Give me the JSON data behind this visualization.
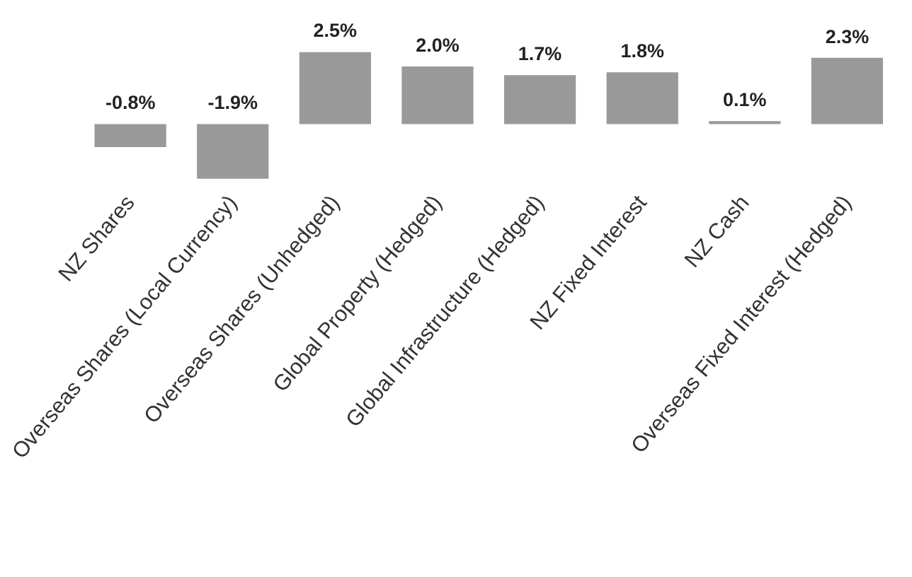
{
  "chart_data": {
    "type": "bar",
    "categories": [
      "NZ Shares",
      "Overseas Shares (Local Currency)",
      "Overseas Shares (Unhedged)",
      "Global Property (Hedged)",
      "Global Infrastructure (Hedged)",
      "NZ Fixed Interest",
      "NZ Cash",
      "Overseas Fixed Interest (Hedged)"
    ],
    "values": [
      -0.8,
      -1.9,
      2.5,
      2.0,
      1.7,
      1.8,
      0.1,
      2.3
    ],
    "value_labels": [
      "-0.8%",
      "-1.9%",
      "2.5%",
      "2.0%",
      "1.7%",
      "1.8%",
      "0.1%",
      "2.3%"
    ],
    "color": "#999999"
  }
}
